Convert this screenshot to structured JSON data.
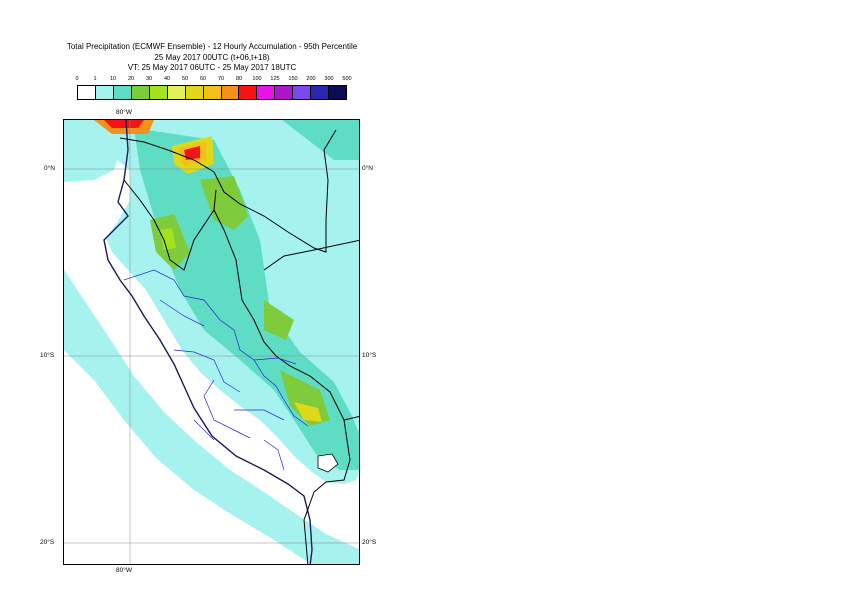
{
  "title": {
    "line1": "Total Precipitation (ECMWF Ensemble) - 12 Hourly Accumulation - 95th Percentile",
    "line2": "25 May 2017 00UTC (t+06,t+18)",
    "line3": "VT: 25 May 2017 06UTC - 25 May 2017 18UTC"
  },
  "legend": {
    "labels": [
      "0",
      "1",
      "10",
      "20",
      "30",
      "40",
      "50",
      "60",
      "70",
      "80",
      "100",
      "125",
      "150",
      "200",
      "300",
      "500"
    ],
    "colors": [
      "#ffffff",
      "#a6f2ee",
      "#5fdcc4",
      "#7ecb3c",
      "#a3e21e",
      "#e2f05a",
      "#dfd81a",
      "#f3c01a",
      "#f5901a",
      "#f51414",
      "#e614e6",
      "#b014c8",
      "#7a4af0",
      "#2a26b4",
      "#0c0c54"
    ]
  },
  "axes": {
    "top_lon": "80°W",
    "bottom_lon": "80°W",
    "lat_0": "0°N",
    "lat_10": "10°S",
    "lat_20": "20°S"
  }
}
